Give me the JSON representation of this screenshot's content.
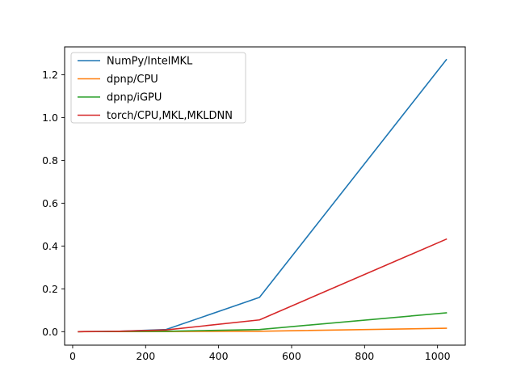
{
  "chart_data": {
    "type": "line",
    "title": "",
    "xlabel": "",
    "ylabel": "",
    "xlim": [
      -22,
      1076
    ],
    "ylim": [
      -0.063,
      1.33
    ],
    "xticks": [
      0,
      200,
      400,
      600,
      800,
      1000
    ],
    "yticks": [
      0.0,
      0.2,
      0.4,
      0.6,
      0.8,
      1.0,
      1.2
    ],
    "xtick_labels": [
      "0",
      "200",
      "400",
      "600",
      "800",
      "1000"
    ],
    "ytick_labels": [
      "0.0",
      "0.2",
      "0.4",
      "0.6",
      "0.8",
      "1.0",
      "1.2"
    ],
    "grid": false,
    "legend_position": "upper-left",
    "x": [
      16,
      32,
      64,
      128,
      256,
      512,
      1024
    ],
    "series": [
      {
        "name": "NumPy/IntelMKL",
        "color": "#1f77b4",
        "values": [
          0.0001,
          0.0002,
          0.0005,
          0.002,
          0.01,
          0.16,
          1.27
        ]
      },
      {
        "name": "dpnp/CPU",
        "color": "#ff7f0e",
        "values": [
          0.0001,
          0.0001,
          0.0002,
          0.0003,
          0.0006,
          0.002,
          0.016
        ]
      },
      {
        "name": "dpnp/iGPU",
        "color": "#2ca02c",
        "values": [
          0.0002,
          0.0003,
          0.0005,
          0.001,
          0.002,
          0.01,
          0.088
        ]
      },
      {
        "name": "torch/CPU,MKL,MKLDNN",
        "color": "#d62728",
        "values": [
          0.0002,
          0.0004,
          0.0008,
          0.002,
          0.008,
          0.055,
          0.432
        ]
      }
    ]
  }
}
